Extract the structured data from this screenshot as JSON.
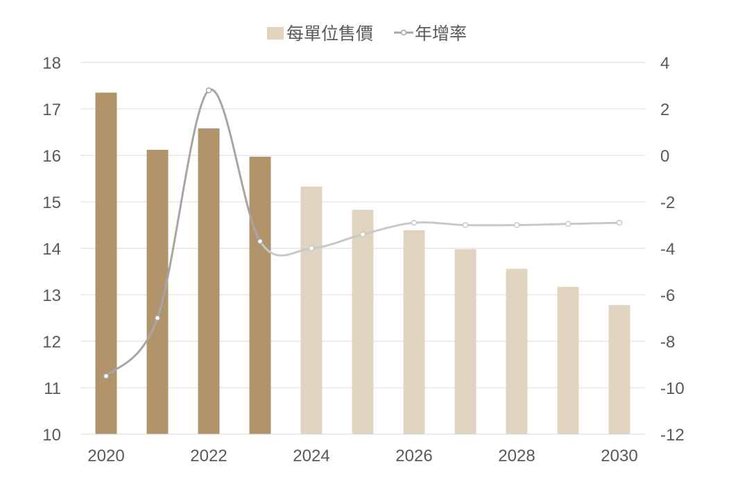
{
  "chart_data": {
    "type": "bar",
    "legend_position": "top",
    "grid": true,
    "categories": [
      "2020",
      "2021",
      "2022",
      "2023",
      "2024",
      "2025",
      "2026",
      "2027",
      "2028",
      "2029",
      "2030"
    ],
    "x_tick_labels": [
      "2020",
      "2022",
      "2024",
      "2026",
      "2028",
      "2030"
    ],
    "series": [
      {
        "name": "每單位售價",
        "type": "bar",
        "axis": "left",
        "values": [
          17.35,
          16.12,
          16.58,
          15.97,
          15.33,
          14.83,
          14.39,
          13.98,
          13.56,
          13.17,
          12.78
        ],
        "colors": [
          "#b1946a",
          "#b1946a",
          "#b1946a",
          "#b1946a",
          "#e0d4c1",
          "#e0d4c1",
          "#e0d4c1",
          "#e0d4c1",
          "#e0d4c1",
          "#e0d4c1",
          "#e0d4c1"
        ]
      },
      {
        "name": "年增率",
        "type": "line",
        "smooth": true,
        "axis": "right",
        "values": [
          -9.5,
          -7.0,
          2.8,
          -3.7,
          -4.0,
          -3.4,
          -2.9,
          -3.0,
          -3.0,
          -2.95,
          -2.9
        ],
        "colors": [
          "#a6a6a6",
          "#a6a6a6",
          "#a6a6a6",
          "#a6a6a6",
          "#c8c8c8",
          "#c8c8c8",
          "#c8c8c8",
          "#c8c8c8",
          "#c8c8c8",
          "#c8c8c8",
          "#c8c8c8"
        ]
      }
    ],
    "y_left": {
      "min": 10,
      "max": 18,
      "step": 1,
      "ticks": [
        "10",
        "11",
        "12",
        "13",
        "14",
        "15",
        "16",
        "17",
        "18"
      ]
    },
    "y_right": {
      "min": -12,
      "max": 4,
      "step": 2,
      "ticks": [
        "-12",
        "-10",
        "-8",
        "-6",
        "-4",
        "-2",
        "0",
        "2",
        "4"
      ]
    },
    "legend": [
      {
        "label": "每單位售價",
        "icon": "square-swatch",
        "color": "#e0d4c1"
      },
      {
        "label": "年增率",
        "icon": "line-marker",
        "color": "#a6a6a6"
      }
    ]
  }
}
